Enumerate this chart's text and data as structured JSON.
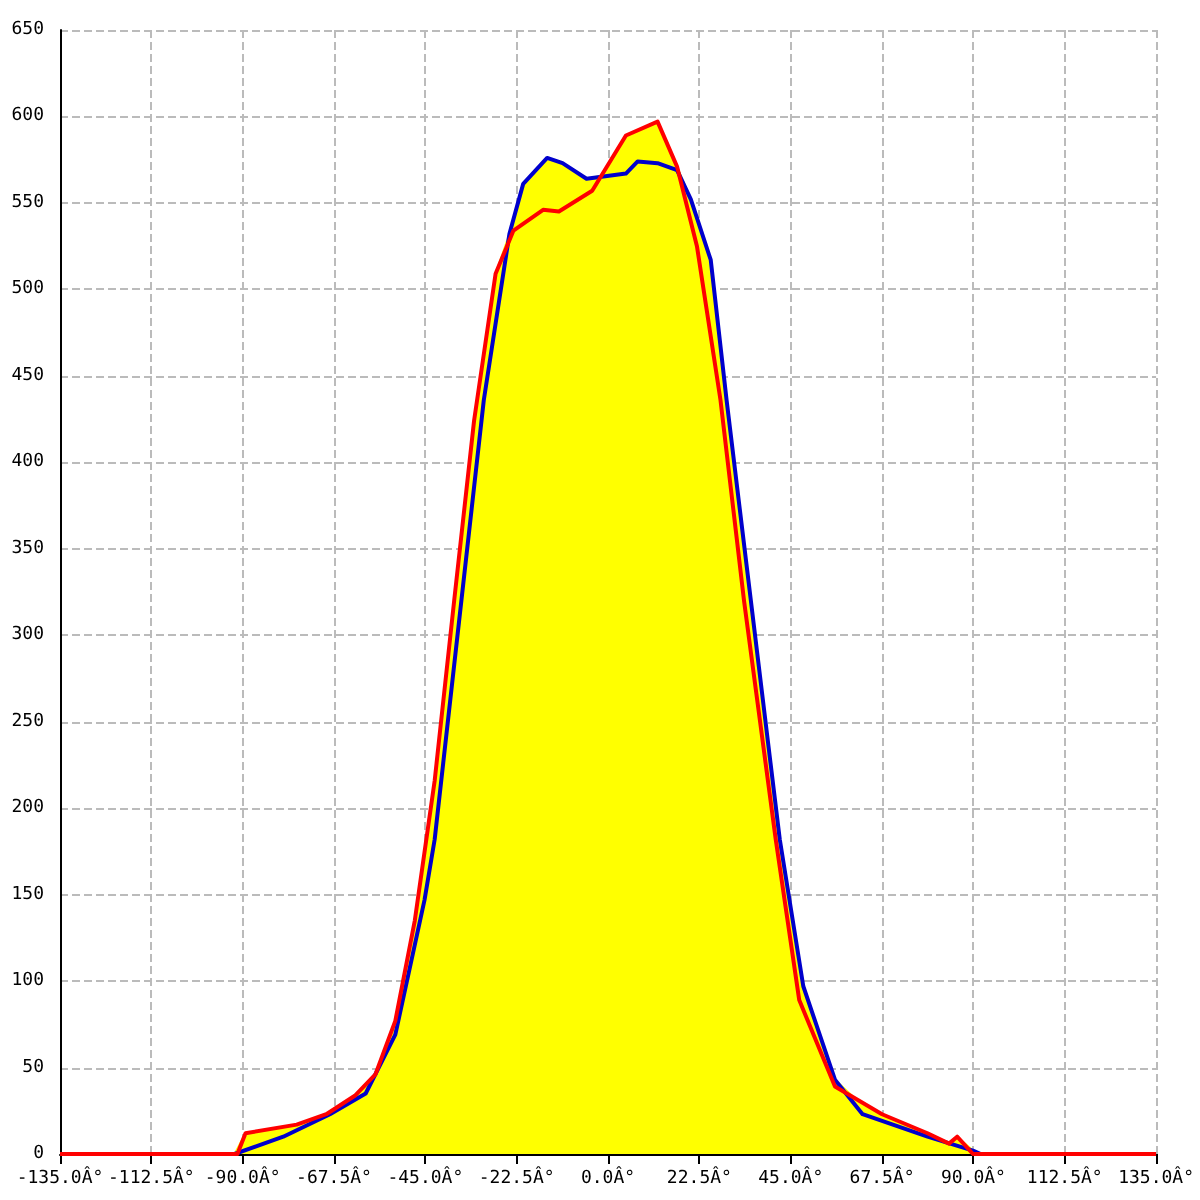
{
  "chart_data": {
    "type": "line",
    "xlim": [
      -135,
      135
    ],
    "ylim": [
      0,
      650
    ],
    "xticks": [
      {
        "value": -135,
        "label": "-135.0Â°"
      },
      {
        "value": -112.5,
        "label": "-112.5Â°"
      },
      {
        "value": -90,
        "label": "-90.0Â°"
      },
      {
        "value": -67.5,
        "label": "-67.5Â°"
      },
      {
        "value": -45,
        "label": "-45.0Â°"
      },
      {
        "value": -22.5,
        "label": "-22.5Â°"
      },
      {
        "value": 0,
        "label": "0.0Â°"
      },
      {
        "value": 22.5,
        "label": "22.5Â°"
      },
      {
        "value": 45,
        "label": "45.0Â°"
      },
      {
        "value": 67.5,
        "label": "67.5Â°"
      },
      {
        "value": 90,
        "label": "90.0Â°"
      },
      {
        "value": 112.5,
        "label": "112.5Â°"
      },
      {
        "value": 135,
        "label": "135.0Â°"
      }
    ],
    "yticks": [
      0,
      50,
      100,
      150,
      200,
      250,
      300,
      350,
      400,
      450,
      500,
      550,
      600,
      650
    ],
    "grid": true,
    "marker": "none",
    "line_style": "solid",
    "series": [
      {
        "type": "area",
        "color": "#ffff00",
        "x": [
          -92,
          -89.3,
          -76.7,
          -69.4,
          -62.2,
          -57.3,
          -52.4,
          -47.6,
          -42.7,
          -37.9,
          -33,
          -27.7,
          -24.3,
          -20.9,
          -15,
          -11.2,
          -5.3,
          -1,
          4.4,
          12.2,
          17,
          20.4,
          25.3,
          29.2,
          42.3,
          48.1,
          55.9,
          62.7,
          67.5,
          78.7,
          84,
          86,
          89.9,
          91.8
        ],
        "values": [
          0,
          12,
          17,
          23,
          34,
          46,
          77,
          135,
          216,
          320,
          424,
          509,
          532,
          561,
          576,
          573,
          564,
          566,
          589,
          597,
          571,
          552,
          517,
          436,
          182,
          97,
          43,
          28,
          23,
          12,
          6,
          10,
          2,
          0
        ]
      },
      {
        "color": "#0000cc",
        "x": [
          -92,
          -80,
          -68.5,
          -59.7,
          -52.4,
          -45.2,
          -42.7,
          -30.6,
          -24.3,
          -20.9,
          -15,
          -11.2,
          -5.3,
          4.4,
          7.3,
          12.2,
          17,
          20.4,
          25.3,
          29.2,
          42.3,
          48.1,
          55.9,
          62.7,
          78.7,
          89.9,
          91.8
        ],
        "values": [
          0,
          10,
          23,
          35,
          69,
          147,
          182,
          436,
          532,
          561,
          576,
          573,
          564,
          567,
          574,
          573,
          569,
          552,
          517,
          436,
          182,
          97,
          43,
          23,
          10,
          2,
          0
        ]
      },
      {
        "color": "#ff0000",
        "x": [
          -135,
          -91.3,
          -89.3,
          -76.7,
          -69.4,
          -62.2,
          -57.3,
          -52.4,
          -47.6,
          -42.7,
          -37.9,
          -33,
          -27.7,
          -23.3,
          -16,
          -12.1,
          -3.9,
          4.4,
          12.2,
          17,
          21.9,
          27.7,
          33.5,
          41.3,
          47.1,
          55.9,
          67.5,
          78.7,
          84,
          86,
          89.9,
          135
        ],
        "values": [
          0,
          0,
          12,
          17,
          23,
          34,
          46,
          77,
          135,
          216,
          320,
          424,
          509,
          534,
          546,
          545,
          557,
          589,
          597,
          571,
          525,
          436,
          320,
          182,
          89,
          39,
          23,
          12,
          6,
          10,
          0,
          0
        ]
      }
    ]
  }
}
